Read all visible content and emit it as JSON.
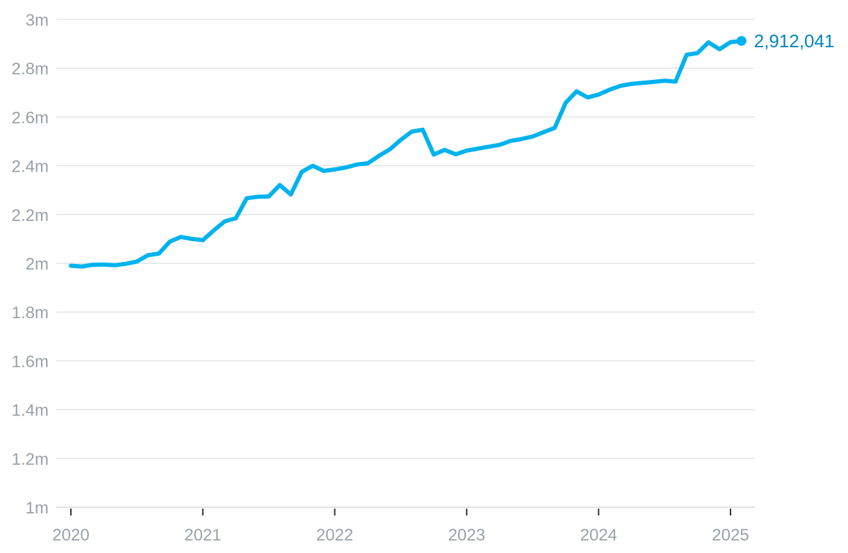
{
  "chart_data": {
    "type": "line",
    "title": "",
    "xlabel": "",
    "ylabel": "",
    "ylim": [
      1000000,
      3000000
    ],
    "xlim": [
      2020.0,
      2025.0
    ],
    "y_ticks": [
      1000000,
      1200000,
      1400000,
      1600000,
      1800000,
      2000000,
      2200000,
      2400000,
      2600000,
      2800000,
      3000000
    ],
    "y_tick_labels": [
      "1m",
      "1.2m",
      "1.4m",
      "1.6m",
      "1.8m",
      "2m",
      "2.2m",
      "2.4m",
      "2.6m",
      "2.8m",
      "3m"
    ],
    "x_ticks": [
      2020,
      2021,
      2022,
      2023,
      2024,
      2025
    ],
    "x_tick_labels": [
      "2020",
      "2021",
      "2022",
      "2023",
      "2024",
      "2025"
    ],
    "grid": true,
    "series_color": "#00b2ee",
    "end_label_color": "#0085c2",
    "end_label": "2,912,041",
    "series": [
      {
        "x": [
          2020.0,
          2020.083,
          2020.167,
          2020.25,
          2020.333,
          2020.417,
          2020.5,
          2020.583,
          2020.667,
          2020.75,
          2020.833,
          2020.917,
          2021.0,
          2021.083,
          2021.167,
          2021.25,
          2021.333,
          2021.417,
          2021.5,
          2021.583,
          2021.667,
          2021.75,
          2021.833,
          2021.917,
          2022.0,
          2022.083,
          2022.167,
          2022.25,
          2022.333,
          2022.417,
          2022.5,
          2022.583,
          2022.667,
          2022.75,
          2022.833,
          2022.917,
          2023.0,
          2023.083,
          2023.167,
          2023.25,
          2023.333,
          2023.417,
          2023.5,
          2023.583,
          2023.667,
          2023.75,
          2023.833,
          2023.917,
          2024.0,
          2024.083,
          2024.167,
          2024.25,
          2024.333,
          2024.417,
          2024.5,
          2024.583,
          2024.667,
          2024.75,
          2024.833,
          2024.917,
          2025.0,
          2025.083
        ],
        "y": [
          1990000,
          1987000,
          1994000,
          1995000,
          1992000,
          1998000,
          2007000,
          2033000,
          2040000,
          2089000,
          2108000,
          2100000,
          2095000,
          2135000,
          2172000,
          2185000,
          2267000,
          2273000,
          2274000,
          2321000,
          2282000,
          2375000,
          2400000,
          2379000,
          2385000,
          2393000,
          2405000,
          2410000,
          2440000,
          2467000,
          2506000,
          2540000,
          2548000,
          2446000,
          2465000,
          2447000,
          2462000,
          2470000,
          2478000,
          2486000,
          2502000,
          2510000,
          2520000,
          2538000,
          2555000,
          2658000,
          2705000,
          2680000,
          2692000,
          2712000,
          2728000,
          2736000,
          2740000,
          2744000,
          2749000,
          2745000,
          2855000,
          2862000,
          2906000,
          2878000,
          2907000,
          2912041
        ]
      }
    ]
  }
}
